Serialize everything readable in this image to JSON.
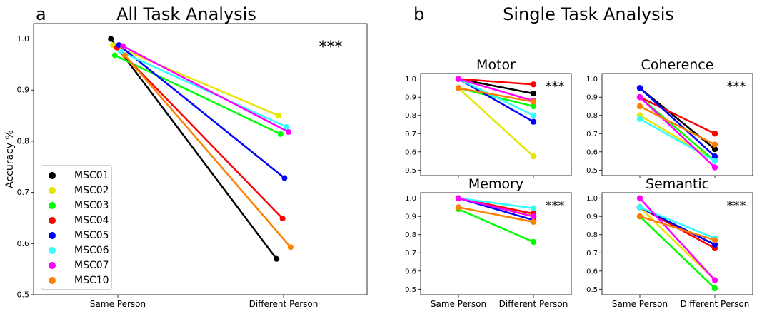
{
  "panel_letters": {
    "a": "a",
    "b": "b"
  },
  "section_titles": {
    "left": "All Task Analysis",
    "right": "Single Task Analysis"
  },
  "colors": {
    "MSC01": "#000000",
    "MSC02": "#e6e600",
    "MSC03": "#00ff00",
    "MSC04": "#ff0000",
    "MSC05": "#0000ff",
    "MSC06": "#33ffff",
    "MSC07": "#ff00ff",
    "MSC10": "#ff7f00"
  },
  "legend": [
    "MSC01",
    "MSC02",
    "MSC03",
    "MSC04",
    "MSC05",
    "MSC06",
    "MSC07",
    "MSC10"
  ],
  "chart_data": [
    {
      "id": "all",
      "type": "line",
      "title": "",
      "ylabel": "Accuracy %",
      "categories": [
        "Same Person",
        "Different Person"
      ],
      "ylim": [
        0.5,
        1.03
      ],
      "yticks": [
        "0.5",
        "0.6",
        "0.7",
        "0.8",
        "0.9",
        "1.0"
      ],
      "significance": "***",
      "series": [
        {
          "name": "MSC01",
          "values": [
            1.0,
            0.57
          ]
        },
        {
          "name": "MSC02",
          "values": [
            0.988,
            0.85
          ]
        },
        {
          "name": "MSC03",
          "values": [
            0.968,
            0.814
          ]
        },
        {
          "name": "MSC04",
          "values": [
            0.983,
            0.649
          ]
        },
        {
          "name": "MSC05",
          "values": [
            0.988,
            0.728
          ]
        },
        {
          "name": "MSC06",
          "values": [
            0.975,
            0.828
          ]
        },
        {
          "name": "MSC07",
          "values": [
            0.986,
            0.818
          ]
        },
        {
          "name": "MSC10",
          "values": [
            0.968,
            0.593
          ]
        }
      ]
    },
    {
      "id": "motor",
      "type": "line",
      "title": "Motor",
      "categories": [
        "Same Person",
        "Different Person"
      ],
      "ylim": [
        0.47,
        1.03
      ],
      "yticks": [
        "0.5",
        "0.6",
        "0.7",
        "0.8",
        "0.9",
        "1.0"
      ],
      "significance": "***",
      "series": [
        {
          "name": "MSC01",
          "values": [
            1.0,
            0.92
          ]
        },
        {
          "name": "MSC02",
          "values": [
            0.95,
            0.575
          ]
        },
        {
          "name": "MSC03",
          "values": [
            0.95,
            0.85
          ]
        },
        {
          "name": "MSC04",
          "values": [
            1.0,
            0.97
          ]
        },
        {
          "name": "MSC05",
          "values": [
            1.0,
            0.765
          ]
        },
        {
          "name": "MSC06",
          "values": [
            1.0,
            0.8
          ]
        },
        {
          "name": "MSC07",
          "values": [
            1.0,
            0.88
          ]
        },
        {
          "name": "MSC10",
          "values": [
            0.95,
            0.875
          ]
        }
      ]
    },
    {
      "id": "coherence",
      "type": "line",
      "title": "Coherence",
      "categories": [
        "Same Person",
        "Different Person"
      ],
      "ylim": [
        0.47,
        1.03
      ],
      "yticks": [
        "0.5",
        "0.6",
        "0.7",
        "0.8",
        "0.9",
        "1.0"
      ],
      "significance": "***",
      "series": [
        {
          "name": "MSC01",
          "values": [
            0.95,
            0.615
          ]
        },
        {
          "name": "MSC02",
          "values": [
            0.8,
            0.555
          ]
        },
        {
          "name": "MSC03",
          "values": [
            0.9,
            0.55
          ]
        },
        {
          "name": "MSC04",
          "values": [
            0.9,
            0.7
          ]
        },
        {
          "name": "MSC05",
          "values": [
            0.95,
            0.575
          ]
        },
        {
          "name": "MSC06",
          "values": [
            0.78,
            0.55
          ]
        },
        {
          "name": "MSC07",
          "values": [
            0.9,
            0.515
          ]
        },
        {
          "name": "MSC10",
          "values": [
            0.85,
            0.64
          ]
        }
      ]
    },
    {
      "id": "memory",
      "type": "line",
      "title": "Memory",
      "categories": [
        "Same Person",
        "Different Person"
      ],
      "ylim": [
        0.47,
        1.03
      ],
      "yticks": [
        "0.5",
        "0.6",
        "0.7",
        "0.8",
        "0.9",
        "1.0"
      ],
      "significance": "***",
      "series": [
        {
          "name": "MSC01",
          "values": [
            1.0,
            0.9
          ]
        },
        {
          "name": "MSC02",
          "values": [
            1.0,
            0.91
          ]
        },
        {
          "name": "MSC03",
          "values": [
            0.94,
            0.76
          ]
        },
        {
          "name": "MSC04",
          "values": [
            1.0,
            0.915
          ]
        },
        {
          "name": "MSC05",
          "values": [
            1.0,
            0.88
          ]
        },
        {
          "name": "MSC06",
          "values": [
            1.0,
            0.945
          ]
        },
        {
          "name": "MSC07",
          "values": [
            1.0,
            0.9
          ]
        },
        {
          "name": "MSC10",
          "values": [
            0.95,
            0.87
          ]
        }
      ]
    },
    {
      "id": "semantic",
      "type": "line",
      "title": "Semantic",
      "categories": [
        "Same Person",
        "Different Person"
      ],
      "ylim": [
        0.47,
        1.03
      ],
      "yticks": [
        "0.5",
        "0.6",
        "0.7",
        "0.8",
        "0.9",
        "1.0"
      ],
      "significance": "***",
      "series": [
        {
          "name": "MSC01",
          "values": [
            0.95,
            0.745
          ]
        },
        {
          "name": "MSC02",
          "values": [
            0.95,
            0.55
          ]
        },
        {
          "name": "MSC03",
          "values": [
            0.9,
            0.505
          ]
        },
        {
          "name": "MSC04",
          "values": [
            0.95,
            0.725
          ]
        },
        {
          "name": "MSC05",
          "values": [
            0.95,
            0.745
          ]
        },
        {
          "name": "MSC06",
          "values": [
            0.95,
            0.78
          ]
        },
        {
          "name": "MSC07",
          "values": [
            1.0,
            0.55
          ]
        },
        {
          "name": "MSC10",
          "values": [
            0.9,
            0.77
          ]
        }
      ]
    }
  ]
}
